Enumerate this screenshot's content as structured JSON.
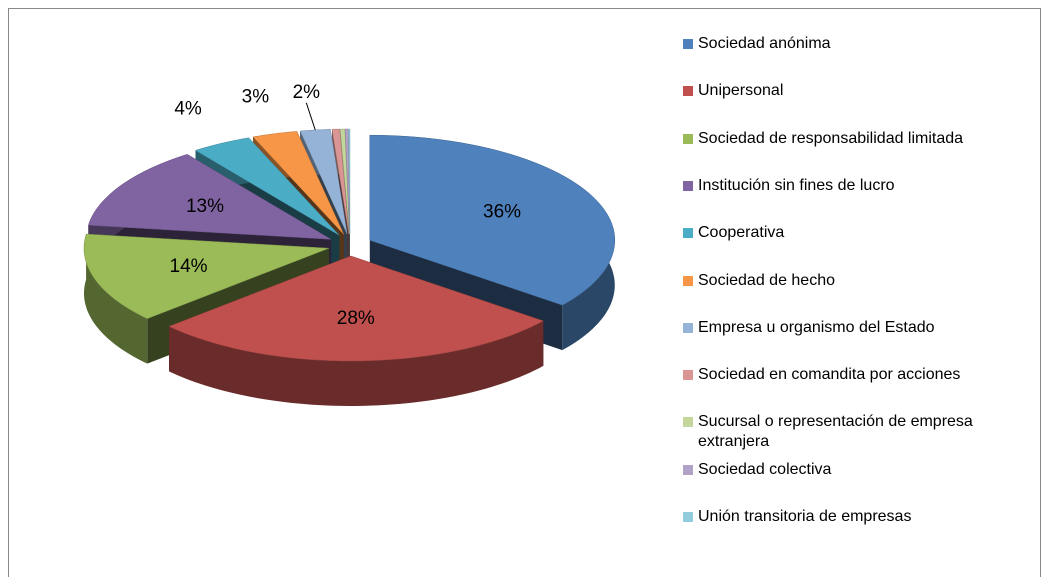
{
  "chart_data": {
    "type": "pie",
    "categories": [
      "Sociedad anónima",
      "Unipersonal",
      "Sociedad de responsabilidad limitada",
      "Institución sin fines de lucro",
      "Cooperativa",
      "Sociedad de hecho",
      "Empresa u organismo del Estado",
      "Sociedad en comandita por acciones",
      "Sucursal o representación de empresa extranjera",
      "Sociedad colectiva",
      "Unión transitoria de empresas"
    ],
    "values": [
      36,
      28,
      14,
      13,
      4,
      3,
      2,
      0.5,
      0.3,
      0.2,
      0.1
    ],
    "value_labels": [
      "36%",
      "28%",
      "14%",
      "13%",
      "4%",
      "3%",
      "2%",
      null,
      null,
      null,
      null
    ],
    "colors": [
      "#4f81bd",
      "#c0504d",
      "#9bbb59",
      "#8064a2",
      "#4bacc6",
      "#f79646",
      "#95b3d7",
      "#d99694",
      "#c3d69b",
      "#b3a2c7",
      "#93cddd"
    ],
    "legend": "right"
  }
}
